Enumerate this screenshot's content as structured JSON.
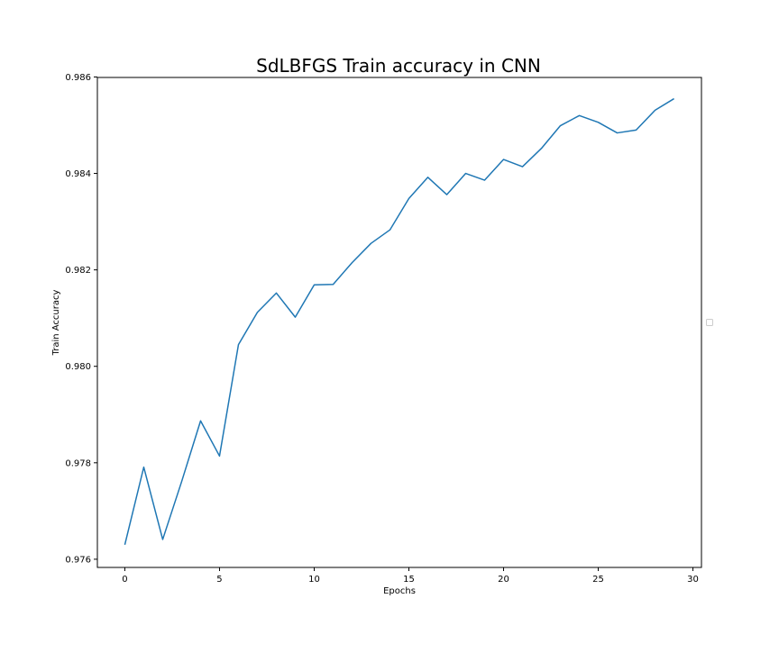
{
  "chart_data": {
    "type": "line",
    "title": "SdLBFGS Train accuracy in CNN",
    "xlabel": "Epochs",
    "ylabel": "Train Accuracy",
    "xlim": [
      -1.45,
      30.45
    ],
    "ylim": [
      0.97583,
      0.98599
    ],
    "xticks": [
      0,
      5,
      10,
      15,
      20,
      25,
      30
    ],
    "xtick_labels": [
      "0",
      "5",
      "10",
      "15",
      "20",
      "25",
      "30"
    ],
    "yticks": [
      0.976,
      0.978,
      0.98,
      0.982,
      0.984,
      0.986
    ],
    "ytick_labels": [
      "0.976",
      "0.978",
      "0.980",
      "0.982",
      "0.984",
      "0.986"
    ],
    "grid": false,
    "legend": "center-right (empty)",
    "series": [
      {
        "color": "#1f77b4",
        "x": [
          0,
          1,
          2,
          3,
          4,
          5,
          6,
          7,
          8,
          9,
          10,
          11,
          12,
          13,
          14,
          15,
          16,
          17,
          18,
          19,
          20,
          21,
          22,
          23,
          24,
          25,
          26,
          27,
          28,
          29
        ],
        "y": [
          0.9763,
          0.97791,
          0.97641,
          0.97761,
          0.97887,
          0.97814,
          0.98045,
          0.98112,
          0.98152,
          0.98102,
          0.98169,
          0.9817,
          0.98215,
          0.98255,
          0.98283,
          0.98348,
          0.98392,
          0.98356,
          0.984,
          0.98386,
          0.98429,
          0.98414,
          0.98452,
          0.98499,
          0.9852,
          0.98506,
          0.98484,
          0.9849,
          0.98531,
          0.98555
        ]
      }
    ]
  }
}
